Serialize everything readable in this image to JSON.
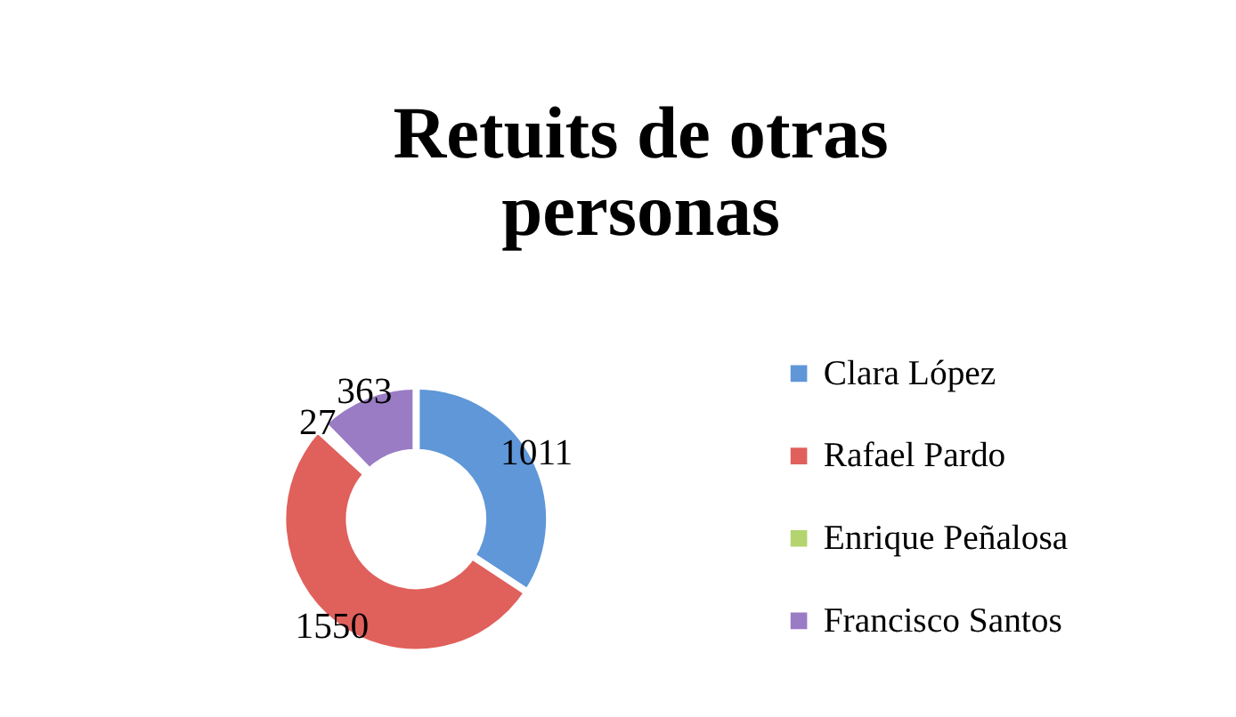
{
  "chart_data": {
    "type": "donut",
    "title": [
      "Retuits de otras",
      "personas"
    ],
    "categories": [
      "Clara López",
      "Rafael Pardo",
      "Enrique Peñalosa",
      "Francisco Santos"
    ],
    "values": [
      1011,
      1550,
      27,
      363
    ],
    "colors": [
      "#5f97d8",
      "#e0605c",
      "#b3d46e",
      "#9a7cc4"
    ],
    "data_labels": true,
    "legend": "right"
  }
}
